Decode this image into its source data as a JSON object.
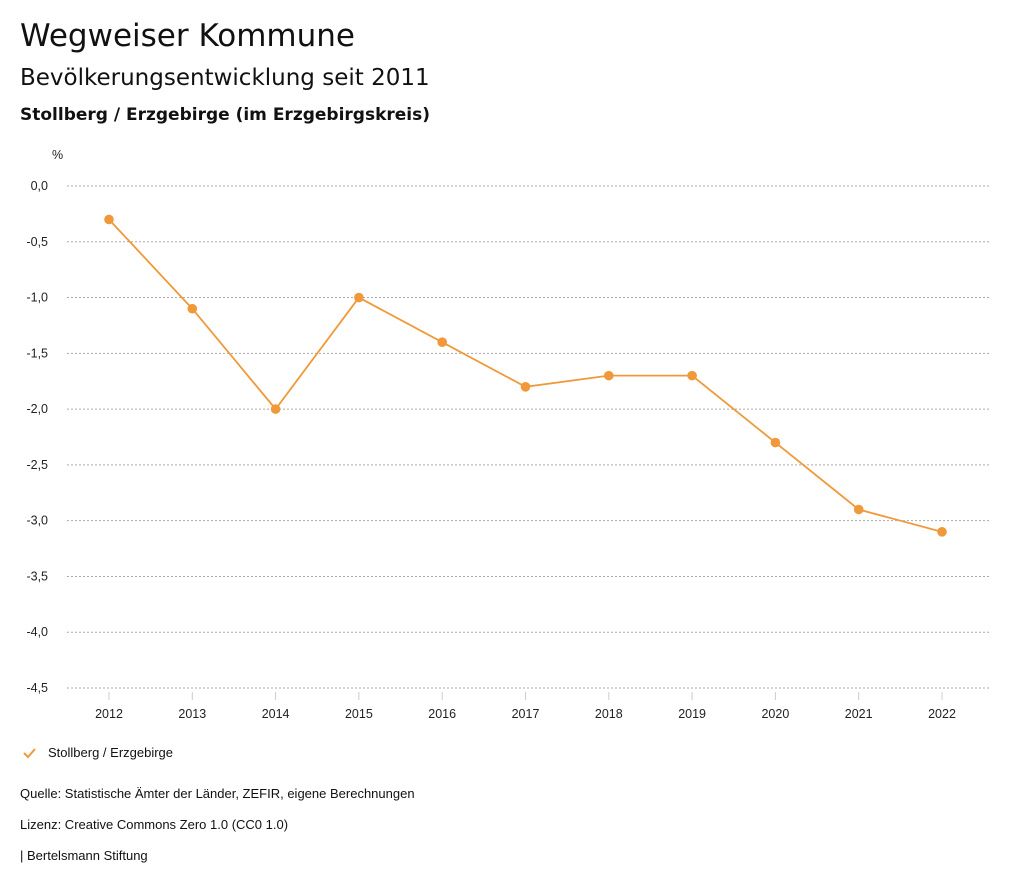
{
  "header": {
    "title": "Wegweiser Kommune",
    "subtitle": "Bevölkerungsentwicklung seit 2011",
    "region": "Stollberg / Erzgebirge (im Erzgebirgskreis)"
  },
  "chart_data": {
    "type": "line",
    "ylabel": "%",
    "ylim": [
      -4.5,
      0
    ],
    "yticks": [
      "0,0",
      "-0,5",
      "-1,0",
      "-1,5",
      "-2,0",
      "-2,5",
      "-3,0",
      "-3,5",
      "-4,0",
      "-4,5"
    ],
    "ytick_values": [
      0,
      -0.5,
      -1,
      -1.5,
      -2,
      -2.5,
      -3,
      -3.5,
      -4,
      -4.5
    ],
    "categories": [
      "2012",
      "2013",
      "2014",
      "2015",
      "2016",
      "2017",
      "2018",
      "2019",
      "2020",
      "2021",
      "2022"
    ],
    "series": [
      {
        "name": "Stollberg / Erzgebirge",
        "color": "#f0993a",
        "values": [
          -0.3,
          -1.1,
          -2.0,
          -1.0,
          -1.4,
          -1.8,
          -1.7,
          -1.7,
          -2.3,
          -2.9,
          -3.1
        ]
      }
    ],
    "grid": true,
    "legend": "bottom-left"
  },
  "footer": {
    "source": "Quelle: Statistische Ämter der Länder, ZEFIR, eigene Berechnungen",
    "license": "Lizenz: Creative Commons Zero 1.0 (CC0 1.0)",
    "brand": "| Bertelsmann Stiftung"
  }
}
